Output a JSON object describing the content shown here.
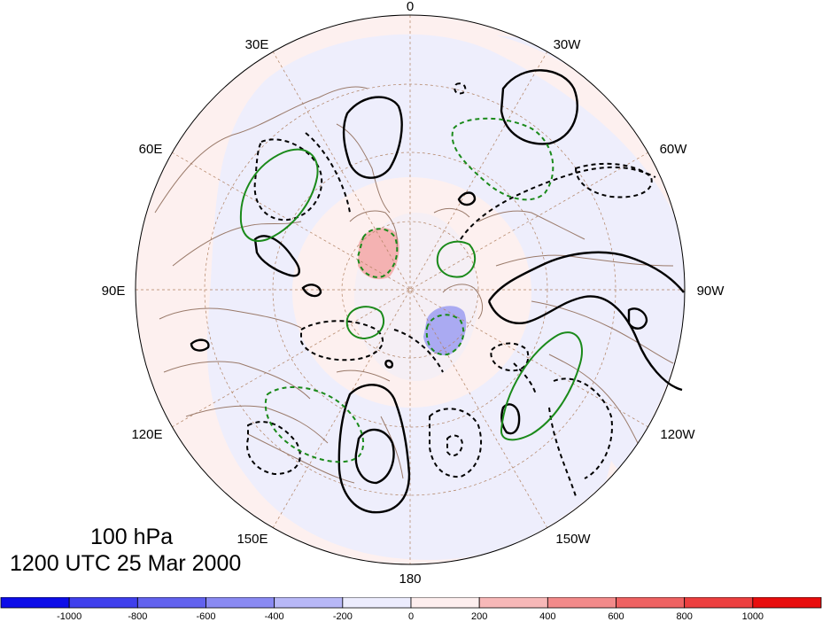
{
  "projection": "north polar stereographic",
  "longitude_labels": {
    "top": "0",
    "upper_left": "30E",
    "upper_right": "30W",
    "left_upper": "60E",
    "right_upper": "60W",
    "left": "90E",
    "right": "90W",
    "left_lower": "120E",
    "right_lower": "120W",
    "lower_left": "150E",
    "lower_right": "150W",
    "bottom": "180"
  },
  "title": {
    "level": "100 hPa",
    "time": "1200 UTC 25 Mar 2000"
  },
  "colorbar": {
    "ticks": [
      "-1000",
      "-800",
      "-600",
      "-400",
      "-200",
      "0",
      "200",
      "400",
      "600",
      "800",
      "1000"
    ],
    "colors": [
      "#0d0de8",
      "#3f3fec",
      "#6262ee",
      "#8a8af2",
      "#b8b8f7",
      "#ececfd",
      "#fdeeee",
      "#f7b8b8",
      "#f28a8a",
      "#ee6262",
      "#ec3f3f",
      "#e80d0d"
    ]
  },
  "colors": {
    "positive_contour": "#000000",
    "negative_contour": "#000000",
    "green_contour": "#1a8a1a",
    "coastline": "#9a7a6a",
    "graticule": "#b08060"
  }
}
